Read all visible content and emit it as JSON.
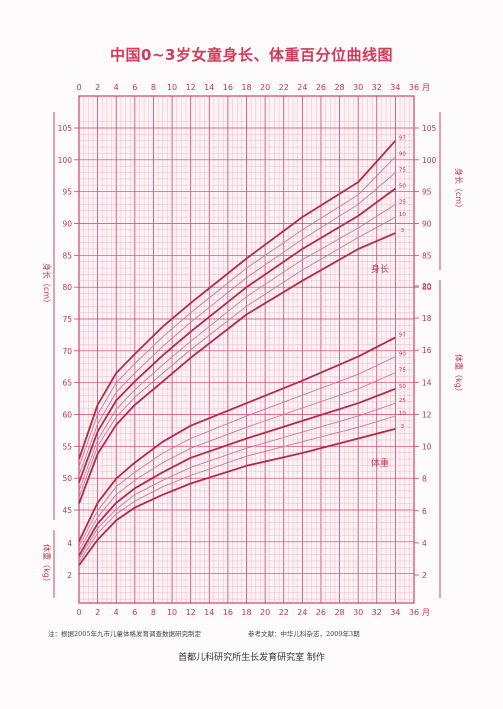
{
  "title": "中国0~3岁女童身长、体重百分位曲线图",
  "note_left": "注：根据2005年九市儿童体格发育调查数据研究制定",
  "note_right": "参考文献：中华儿科杂志，2009年3期",
  "credit": "首都儿科研究所生长发育研究室  制作",
  "colors": {
    "grid": "#e8a3b6",
    "major": "#c9456a",
    "curve_dark": "#b32a4e",
    "curve_light": "#c87a9a",
    "text": "#c23556"
  },
  "chart_data": {
    "type": "line",
    "title": "中国0~3岁女童身长、体重百分位曲线图",
    "x_unit": "月",
    "x_ticks": [
      0,
      2,
      4,
      6,
      8,
      10,
      12,
      14,
      16,
      18,
      20,
      22,
      24,
      26,
      28,
      30,
      32,
      34,
      36
    ],
    "xlim": [
      0,
      36
    ],
    "grid": true,
    "length": {
      "label": "身长",
      "axis_label_left": "身长（cm）",
      "axis_label_right": "身长（cm）",
      "ylim": [
        44,
        106
      ],
      "left_ticks": [
        45,
        50,
        55,
        60,
        65,
        70,
        75,
        80,
        85,
        90,
        95,
        100,
        105
      ],
      "right_ticks": [
        80,
        85,
        90,
        95,
        100,
        105
      ],
      "x": [
        0,
        2,
        4,
        6,
        9,
        12,
        18,
        24,
        30,
        34
      ],
      "series": [
        {
          "name": "97",
          "values": [
            53.0,
            61.5,
            66.5,
            69.5,
            73.8,
            77.5,
            84.5,
            91.0,
            96.5,
            103.0
          ]
        },
        {
          "name": "90",
          "values": [
            51.8,
            60.0,
            65.0,
            68.0,
            72.2,
            76.0,
            83.0,
            89.0,
            94.5,
            100.5
          ]
        },
        {
          "name": "75",
          "values": [
            50.5,
            58.5,
            63.5,
            66.5,
            70.7,
            74.5,
            81.5,
            87.5,
            93.0,
            98.0
          ]
        },
        {
          "name": "50",
          "values": [
            49.3,
            57.3,
            62.2,
            65.2,
            69.3,
            73.0,
            80.0,
            86.0,
            91.2,
            95.5
          ]
        },
        {
          "name": "25",
          "values": [
            48.0,
            56.0,
            60.8,
            63.9,
            67.8,
            71.5,
            78.5,
            84.3,
            89.3,
            93.0
          ]
        },
        {
          "name": "10",
          "values": [
            47.0,
            55.0,
            59.6,
            62.7,
            66.5,
            70.2,
            77.0,
            82.7,
            87.8,
            91.0
          ]
        },
        {
          "name": "3",
          "values": [
            46.0,
            53.8,
            58.4,
            61.5,
            65.2,
            68.9,
            75.7,
            81.0,
            86.0,
            88.5
          ]
        }
      ]
    },
    "weight": {
      "label": "体重",
      "axis_label_left": "体重（kg）",
      "axis_label_right": "体重（kg）",
      "right_ticks": [
        2,
        4,
        6,
        8,
        10,
        12,
        14,
        16,
        18,
        20
      ],
      "left_ticks": [
        2,
        4
      ],
      "ylim": [
        0,
        22
      ],
      "x": [
        0,
        2,
        4,
        6,
        9,
        12,
        18,
        24,
        30,
        34
      ],
      "series": [
        {
          "name": "97",
          "values": [
            4.1,
            6.5,
            8.0,
            9.0,
            10.3,
            11.3,
            12.7,
            14.1,
            15.6,
            16.8
          ]
        },
        {
          "name": "90",
          "values": [
            3.8,
            6.0,
            7.5,
            8.4,
            9.6,
            10.5,
            11.9,
            13.2,
            14.5,
            15.6
          ]
        },
        {
          "name": "75",
          "values": [
            3.5,
            5.6,
            7.0,
            7.9,
            9.0,
            9.9,
            11.2,
            12.4,
            13.6,
            14.6
          ]
        },
        {
          "name": "50",
          "values": [
            3.2,
            5.2,
            6.5,
            7.4,
            8.4,
            9.3,
            10.5,
            11.6,
            12.7,
            13.6
          ]
        },
        {
          "name": "25",
          "values": [
            3.0,
            4.9,
            6.1,
            7.0,
            7.9,
            8.7,
            9.9,
            10.9,
            11.9,
            12.7
          ]
        },
        {
          "name": "10",
          "values": [
            2.8,
            4.6,
            5.8,
            6.6,
            7.5,
            8.2,
            9.4,
            10.3,
            11.2,
            11.9
          ]
        },
        {
          "name": "3",
          "values": [
            2.6,
            4.2,
            5.4,
            6.2,
            7.0,
            7.7,
            8.8,
            9.6,
            10.5,
            11.1
          ]
        }
      ]
    }
  }
}
